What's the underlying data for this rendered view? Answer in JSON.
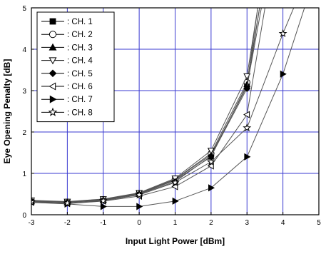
{
  "chart_data": {
    "type": "line",
    "title": "",
    "xlabel": "Input Light Power [dBm]",
    "ylabel": "Eye Opening Penalty [dB]",
    "xlim": [
      -3,
      5
    ],
    "ylim": [
      0,
      5
    ],
    "xticks": [
      -3,
      -2,
      -1,
      0,
      1,
      2,
      3,
      4,
      5
    ],
    "yticks": [
      0,
      1,
      2,
      3,
      4,
      5
    ],
    "grid": true,
    "legend_position": "top-left",
    "series": [
      {
        "name": ": CH. 1",
        "marker": "square",
        "fill": "filled",
        "x": [
          -3,
          -2,
          -1,
          0,
          1,
          2,
          3,
          3.4
        ],
        "y": [
          0.33,
          0.3,
          0.36,
          0.5,
          0.85,
          1.45,
          3.1,
          5.0
        ]
      },
      {
        "name": ": CH. 2",
        "marker": "circle",
        "fill": "open",
        "x": [
          -3,
          -2,
          -1,
          0,
          1,
          2,
          3,
          3.35
        ],
        "y": [
          0.34,
          0.31,
          0.37,
          0.52,
          0.86,
          1.48,
          3.2,
          5.0
        ]
      },
      {
        "name": ": CH. 3",
        "marker": "triangle-up",
        "fill": "filled",
        "x": [
          -3,
          -2,
          -1,
          0,
          1,
          2,
          3,
          3.3
        ],
        "y": [
          0.32,
          0.3,
          0.36,
          0.51,
          0.83,
          1.4,
          3.15,
          5.0
        ]
      },
      {
        "name": ": CH. 4",
        "marker": "triangle-down",
        "fill": "open",
        "x": [
          -3,
          -2,
          -1,
          0,
          1,
          2,
          3,
          3.3
        ],
        "y": [
          0.35,
          0.32,
          0.38,
          0.53,
          0.88,
          1.55,
          3.35,
          5.0
        ]
      },
      {
        "name": ": CH. 5",
        "marker": "diamond",
        "fill": "filled",
        "x": [
          -3,
          -2,
          -1,
          0,
          1,
          2,
          3,
          3.35
        ],
        "y": [
          0.33,
          0.3,
          0.35,
          0.5,
          0.8,
          1.42,
          3.05,
          5.0
        ]
      },
      {
        "name": ": CH. 6",
        "marker": "triangle-left",
        "fill": "open",
        "x": [
          -3,
          -2,
          -1,
          0,
          1,
          2,
          3,
          3.5
        ],
        "y": [
          0.3,
          0.27,
          0.33,
          0.45,
          0.68,
          1.18,
          2.42,
          5.0
        ]
      },
      {
        "name": ": CH. 7",
        "marker": "triangle-right",
        "fill": "filled",
        "x": [
          -3,
          -2,
          -1,
          0,
          1,
          2,
          3,
          4,
          4.6
        ],
        "y": [
          0.3,
          0.26,
          0.2,
          0.2,
          0.33,
          0.65,
          1.4,
          3.4,
          5.0
        ]
      },
      {
        "name": ": CH. 8",
        "marker": "star",
        "fill": "open",
        "x": [
          -3,
          -2,
          -1,
          0,
          1,
          2,
          3,
          4,
          4.3
        ],
        "y": [
          0.31,
          0.28,
          0.34,
          0.48,
          0.78,
          1.28,
          2.1,
          4.38,
          5.0
        ]
      }
    ]
  }
}
